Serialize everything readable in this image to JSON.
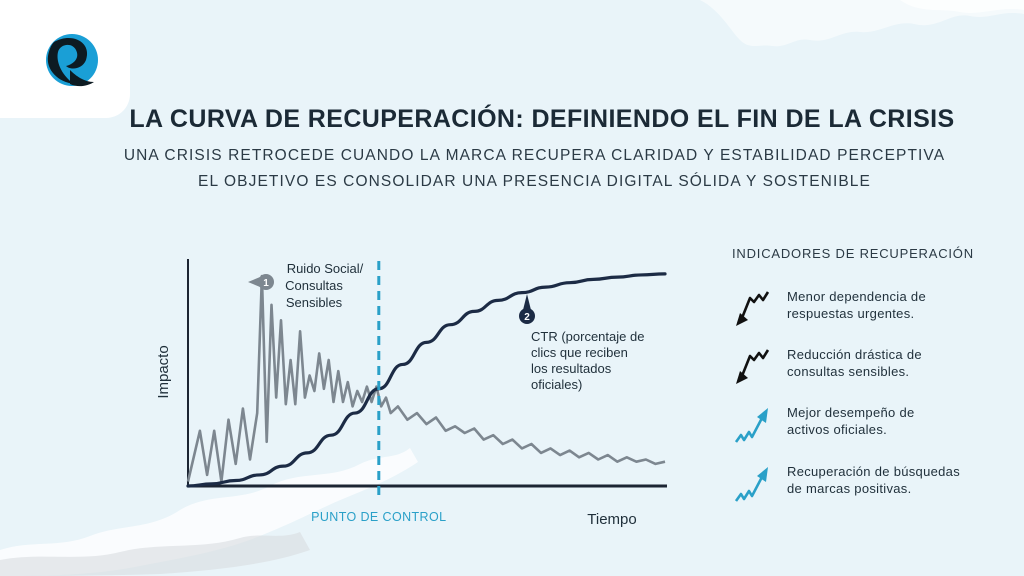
{
  "header": {
    "title": "LA CURVA DE RECUPERACIÓN: DEFINIENDO EL FIN DE LA CRISIS",
    "subtitle_line1": "UNA CRISIS RETROCEDE CUANDO LA MARCA RECUPERA CLARIDAD Y ESTABILIDAD PERCEPTIVA",
    "subtitle_line2": "EL OBJETIVO ES CONSOLIDAR UNA PRESENCIA DIGITAL SÓLIDA Y SOSTENIBLE"
  },
  "colors": {
    "background": "#e9f4f9",
    "curve_dark": "#1c2b45",
    "noise_gray": "#7d8790",
    "accent_blue": "#2aa0c8",
    "logo_blue": "#1a9fd6"
  },
  "chart_data": {
    "type": "line",
    "xlabel": "Tiempo",
    "ylabel": "Impacto",
    "control_point_label": "PUNTO DE CONTROL",
    "control_point_x": 40,
    "xlim": [
      0,
      100
    ],
    "ylim": [
      0,
      100
    ],
    "series": [
      {
        "role": "noise",
        "x": [
          0,
          2.5,
          4,
          5.5,
          7,
          8.5,
          10,
          11.5,
          13,
          14.5,
          15.5,
          16.5,
          17.5,
          18.5,
          19.5,
          20.5,
          21.5,
          22.5,
          23.5,
          24.5,
          25.5,
          26.5,
          27.5,
          28.5,
          29.5,
          30.5,
          31.5,
          32.5,
          33.5,
          34.5,
          35.5,
          36.5,
          37.5,
          38.5,
          39.5,
          40.5,
          41.5,
          42.5,
          44,
          46,
          48,
          50,
          52,
          54,
          56,
          58,
          60,
          62,
          64,
          66,
          68,
          70,
          72,
          74,
          76,
          78,
          80,
          82,
          84,
          86,
          88,
          90,
          92,
          94,
          96,
          98,
          100
        ],
        "y": [
          2,
          25,
          5,
          25,
          2,
          30,
          10,
          35,
          12,
          33,
          95,
          20,
          82,
          40,
          75,
          37,
          57,
          37,
          70,
          40,
          50,
          43,
          60,
          44,
          57,
          38,
          52,
          38,
          47,
          36,
          43,
          38,
          45,
          38,
          45,
          36,
          40,
          33,
          36,
          30,
          33,
          28,
          31,
          25,
          27,
          24,
          26,
          21,
          23,
          19,
          21,
          17,
          19,
          15,
          17,
          14,
          16,
          13,
          15,
          12,
          14,
          11,
          13,
          11,
          12,
          10,
          11
        ]
      },
      {
        "role": "recovery",
        "name": "CTR (porcentaje de clics que reciben los resultados oficiales)",
        "x": [
          0,
          5,
          10,
          15,
          20,
          25,
          30,
          35,
          40,
          45,
          50,
          55,
          60,
          65,
          70,
          75,
          80,
          85,
          90,
          95,
          100
        ],
        "y": [
          0,
          1,
          2.5,
          5,
          9,
          15,
          23,
          33,
          44,
          55,
          65,
          73,
          79,
          84,
          87.5,
          90,
          92,
          93.5,
          94.5,
          95.5,
          96
        ]
      }
    ],
    "annotations": [
      {
        "number": "1",
        "text_lines": [
          "Ruido Social/",
          "Consultas",
          "Sensibles"
        ],
        "x": 15.5,
        "y": 95
      },
      {
        "number": "2",
        "text_lines": [
          "CTR (porcentaje de",
          "clics que reciben",
          "los resultados",
          "oficiales)"
        ],
        "x": 71,
        "y": 88
      }
    ],
    "grid": false,
    "legend": "none"
  },
  "indicators": {
    "title": "INDICADORES DE RECUPERACIÓN",
    "items": [
      {
        "text_lines": [
          "Menor dependencia de",
          "respuestas urgentes."
        ],
        "icon": "trend-down-icon",
        "color": "#111111"
      },
      {
        "text_lines": [
          "Reducción drástica de",
          "consultas sensibles."
        ],
        "icon": "trend-down-icon",
        "color": "#111111"
      },
      {
        "text_lines": [
          "Mejor desempeño de",
          "activos oficiales."
        ],
        "icon": "trend-up-icon",
        "color": "#2aa0c8"
      },
      {
        "text_lines": [
          "Recuperación de búsquedas",
          "de marcas positivas."
        ],
        "icon": "trend-up-icon",
        "color": "#2aa0c8"
      }
    ]
  }
}
